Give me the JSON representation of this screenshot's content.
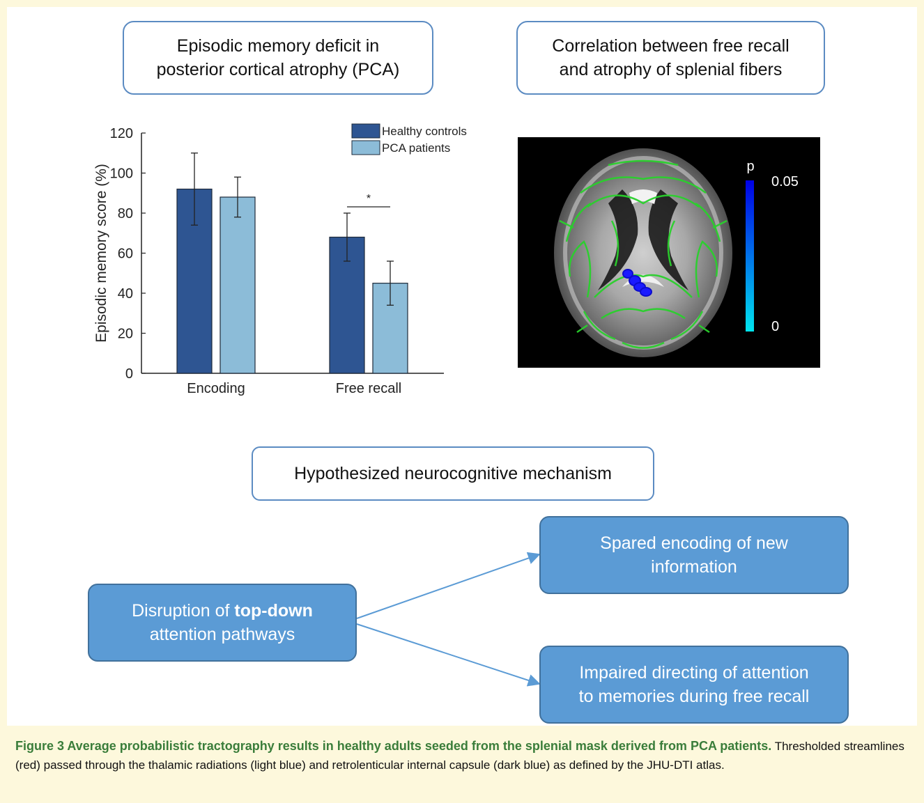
{
  "left_title": {
    "line1": "Episodic memory deficit in",
    "line2": "posterior cortical atrophy (PCA)"
  },
  "right_title": {
    "line1": "Correlation between free recall",
    "line2": "and atrophy of splenial fibers"
  },
  "mechanism_title": "Hypothesized neurocognitive mechanism",
  "flow": {
    "source": {
      "pre": "Disruption of ",
      "bold": "top-down",
      "line2": "attention pathways"
    },
    "target_top": {
      "line1": "Spared encoding of new",
      "line2": "information"
    },
    "target_bottom": {
      "line1": "Impaired directing of attention",
      "line2": "to memories during free recall"
    }
  },
  "chart_data": {
    "type": "bar",
    "categories": [
      "Encoding",
      "Free recall"
    ],
    "series": [
      {
        "name": "Healthy controls",
        "color": "#2e5592",
        "values": [
          92,
          68
        ],
        "error": [
          18,
          12
        ]
      },
      {
        "name": "PCA patients",
        "color": "#8cbcd8",
        "values": [
          88,
          45
        ],
        "error": [
          10,
          11
        ]
      }
    ],
    "ylabel": "Episodic memory score (%)",
    "ylim": [
      0,
      120
    ],
    "yticks": [
      0,
      20,
      40,
      60,
      80,
      100,
      120
    ],
    "significance": {
      "category": "Free recall",
      "label": "*"
    },
    "legend": "top-right"
  },
  "brain_scale": {
    "label": "p",
    "max": "0.05",
    "min": "0",
    "color_top": "#0000e6",
    "color_bottom": "#00e5ee"
  },
  "caption": {
    "lead": "Figure 3 Average probabilistic tractography results in healthy adults seeded from the splenial mask derived from PCA patients.",
    "body": " Thresholded streamlines (red) passed through the thalamic radiations (light blue) and retrolenticular internal capsule (dark blue) as defined by the JHU-DTI atlas."
  }
}
